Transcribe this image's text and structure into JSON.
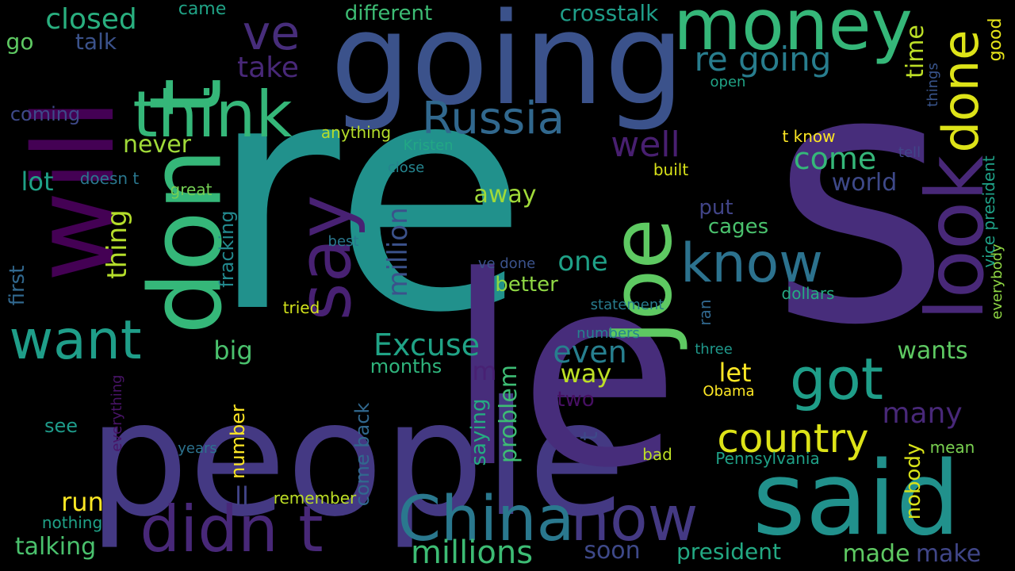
{
  "words": [
    {
      "text": "s",
      "color": "#472d7b"
    },
    {
      "text": "re",
      "color": "#21918c"
    },
    {
      "text": "people",
      "color": "#443983"
    },
    {
      "text": "le",
      "color": "#472d7b"
    },
    {
      "text": "going",
      "color": "#3b528b"
    },
    {
      "text": "will",
      "color": "#440154"
    },
    {
      "text": "don t",
      "color": "#35b779"
    },
    {
      "text": "said",
      "color": "#21918c"
    },
    {
      "text": "say",
      "color": "#482173"
    },
    {
      "text": "Joe",
      "color": "#5ec962"
    },
    {
      "text": "look",
      "color": "#482878"
    },
    {
      "text": "money",
      "color": "#35b779"
    },
    {
      "text": "think",
      "color": "#35b779"
    },
    {
      "text": "China",
      "color": "#2a788e"
    },
    {
      "text": "now",
      "color": "#443983"
    },
    {
      "text": "didn t",
      "color": "#482878"
    },
    {
      "text": "want",
      "color": "#1f9e89"
    },
    {
      "text": "know",
      "color": "#2c728e"
    },
    {
      "text": "got",
      "color": "#1f9e89"
    },
    {
      "text": "done",
      "color": "#dde318"
    },
    {
      "text": "country",
      "color": "#dde318"
    },
    {
      "text": "Russia",
      "color": "#31688e"
    },
    {
      "text": "ve",
      "color": "#472d7b"
    },
    {
      "text": "re going",
      "color": "#287d8e"
    },
    {
      "text": "millions",
      "color": "#3dbc74"
    },
    {
      "text": "Excuse",
      "color": "#20a386"
    },
    {
      "text": "come",
      "color": "#35b779"
    },
    {
      "text": "well",
      "color": "#481f70"
    },
    {
      "text": "closed",
      "color": "#29af7f"
    },
    {
      "text": "crosstalk",
      "color": "#1f9e89"
    },
    {
      "text": "different",
      "color": "#3dbc74"
    },
    {
      "text": "take",
      "color": "#482878"
    },
    {
      "text": "talk",
      "color": "#3b528b"
    },
    {
      "text": "go",
      "color": "#5ec962"
    },
    {
      "text": "came",
      "color": "#20a386"
    },
    {
      "text": "time",
      "color": "#bddf26"
    },
    {
      "text": "good",
      "color": "#e7e419"
    },
    {
      "text": "things",
      "color": "#39558c"
    },
    {
      "text": "open",
      "color": "#20a486"
    },
    {
      "text": "vice president",
      "color": "#1fa187"
    },
    {
      "text": "everybody",
      "color": "#8fd744"
    },
    {
      "text": "coming",
      "color": "#3e4989"
    },
    {
      "text": "never",
      "color": "#a0da39"
    },
    {
      "text": "anything",
      "color": "#b5de2b"
    },
    {
      "text": "Kristen",
      "color": "#22a785"
    },
    {
      "text": "t know",
      "color": "#fde725"
    },
    {
      "text": "tell",
      "color": "#404688"
    },
    {
      "text": "close",
      "color": "#25848e"
    },
    {
      "text": "built",
      "color": "#d8e219"
    },
    {
      "text": "world",
      "color": "#3e4989"
    },
    {
      "text": "lot",
      "color": "#1fa187"
    },
    {
      "text": "doesn t",
      "color": "#2a778e"
    },
    {
      "text": "great",
      "color": "#75d054"
    },
    {
      "text": "thing",
      "color": "#b5de2b"
    },
    {
      "text": "fracking",
      "color": "#23898e"
    },
    {
      "text": "million",
      "color": "#3b528b"
    },
    {
      "text": "away",
      "color": "#a0da39"
    },
    {
      "text": "put",
      "color": "#414487"
    },
    {
      "text": "cages",
      "color": "#4ac16d"
    },
    {
      "text": "first",
      "color": "#31688e"
    },
    {
      "text": "best",
      "color": "#2a788e"
    },
    {
      "text": "one",
      "color": "#1fa187"
    },
    {
      "text": "ve done",
      "color": "#3b528b"
    },
    {
      "text": "better",
      "color": "#8fd744"
    },
    {
      "text": "tried",
      "color": "#d2e21b"
    },
    {
      "text": "statement",
      "color": "#287c8e"
    },
    {
      "text": "dollars",
      "color": "#25ab82"
    },
    {
      "text": "ran",
      "color": "#31688e"
    },
    {
      "text": "numbers",
      "color": "#26828e"
    },
    {
      "text": "big",
      "color": "#4ac16d"
    },
    {
      "text": "even",
      "color": "#277f8e"
    },
    {
      "text": "wants",
      "color": "#5ec962"
    },
    {
      "text": "three",
      "color": "#1f988b"
    },
    {
      "text": "m",
      "color": "#482173"
    },
    {
      "text": "way",
      "color": "#bddf26"
    },
    {
      "text": "let",
      "color": "#fde725"
    },
    {
      "text": "months",
      "color": "#2fb47c"
    },
    {
      "text": "Obama",
      "color": "#fde725"
    },
    {
      "text": "t",
      "color": "#3e4989"
    },
    {
      "text": "two",
      "color": "#471063"
    },
    {
      "text": "many",
      "color": "#482878"
    },
    {
      "text": "see",
      "color": "#1e9b8a"
    },
    {
      "text": "problem",
      "color": "#3dbc74"
    },
    {
      "text": "saying",
      "color": "#25ab82"
    },
    {
      "text": "come back",
      "color": "#31688e"
    },
    {
      "text": "number",
      "color": "#fde725"
    },
    {
      "text": "everything",
      "color": "#481467"
    },
    {
      "text": "years",
      "color": "#2c728e"
    },
    {
      "text": "bad",
      "color": "#bddf26"
    },
    {
      "text": "Pennsylvania",
      "color": "#1fa187"
    },
    {
      "text": "nobody",
      "color": "#d8e219"
    },
    {
      "text": "mean",
      "color": "#7ad151"
    },
    {
      "text": "run",
      "color": "#fde725"
    },
    {
      "text": "ll",
      "color": "#414487"
    },
    {
      "text": "remember",
      "color": "#bddf26"
    },
    {
      "text": "nothing",
      "color": "#1fa187"
    },
    {
      "text": "talking",
      "color": "#4ac16d"
    },
    {
      "text": "soon",
      "color": "#3e4989"
    },
    {
      "text": "president",
      "color": "#23a983"
    },
    {
      "text": "made",
      "color": "#5ec962"
    },
    {
      "text": "make",
      "color": "#404688"
    }
  ]
}
